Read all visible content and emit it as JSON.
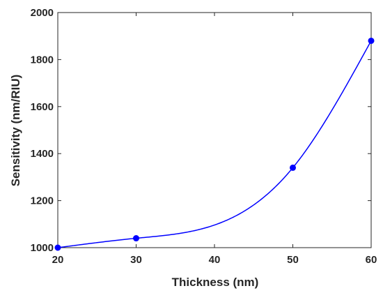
{
  "chart_data": {
    "type": "line",
    "title": "",
    "xlabel": "Thickness (nm)",
    "ylabel": "Sensitivity (nm/RIU)",
    "xlim": [
      20,
      60
    ],
    "ylim": [
      1000,
      2000
    ],
    "grid": false,
    "x_ticks": [
      20,
      30,
      40,
      50,
      60
    ],
    "y_ticks": [
      1000,
      1200,
      1400,
      1600,
      1800,
      2000
    ],
    "series": [
      {
        "x": [
          20,
          30,
          50,
          60
        ],
        "y": [
          1000,
          1040,
          1340,
          1880
        ],
        "color": "#0000ff",
        "marker": "circle",
        "smooth": true
      }
    ]
  }
}
